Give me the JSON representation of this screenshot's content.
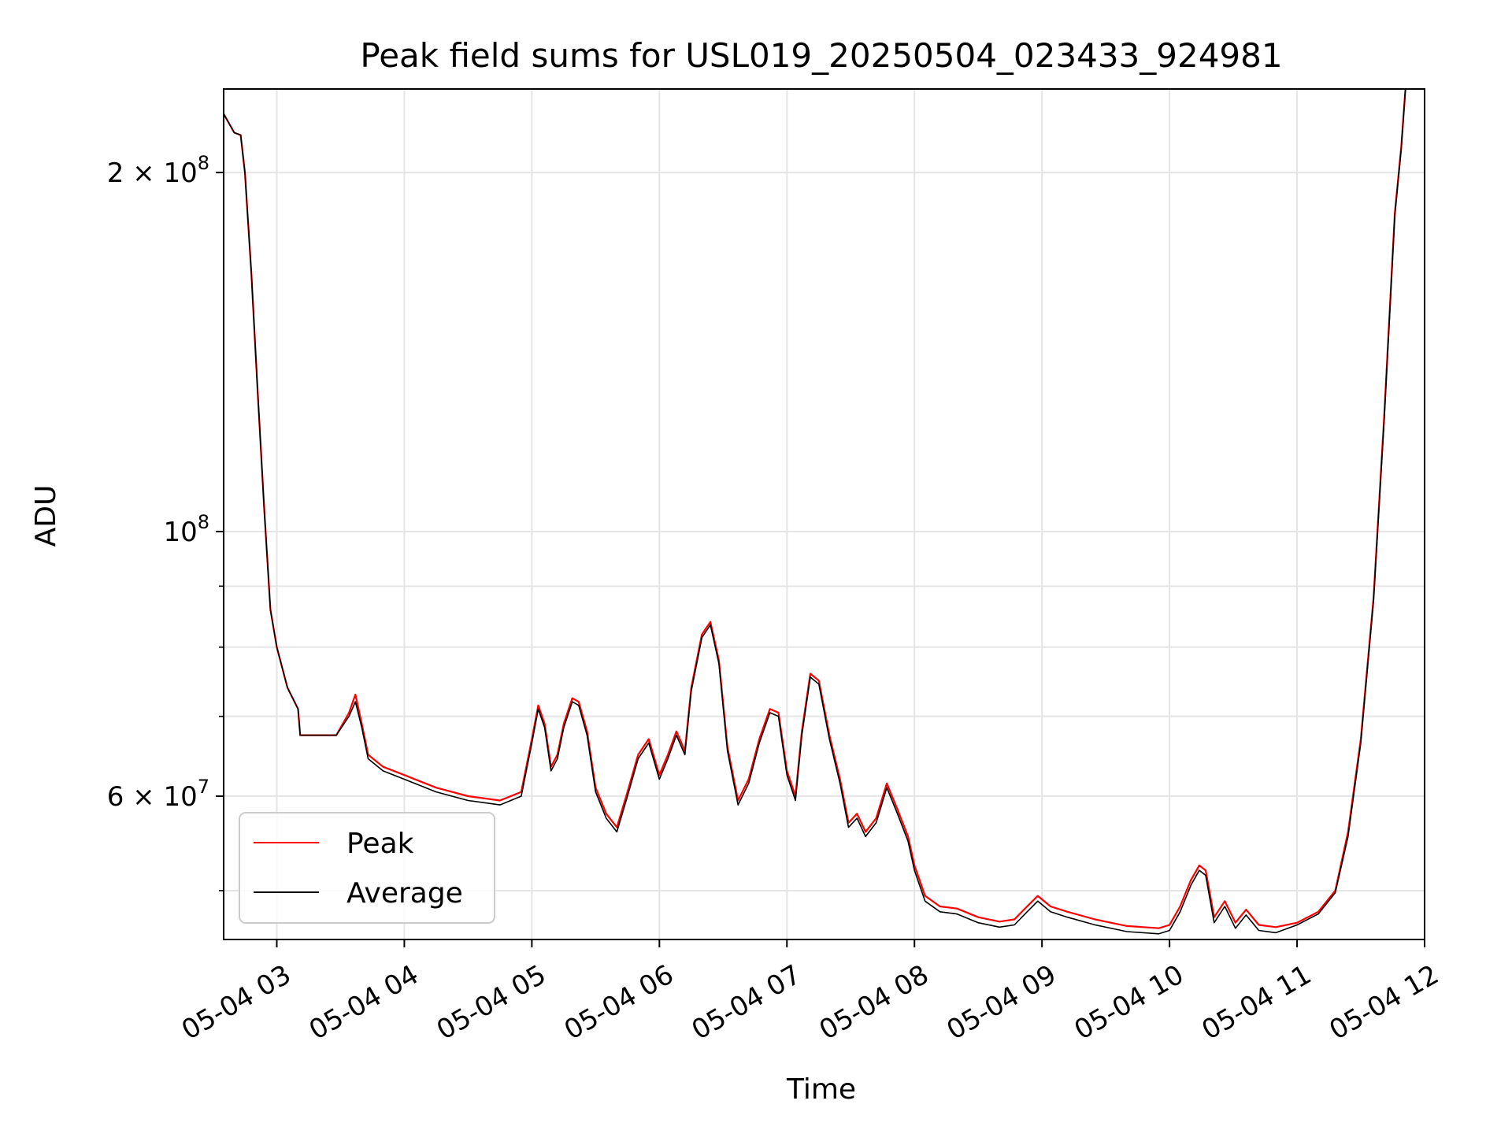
{
  "chart_data": {
    "type": "line",
    "title": "Peak field sums for USL019_20250504_023433_924981",
    "xlabel": "Time",
    "ylabel": "ADU",
    "yscale": "log",
    "xlim": [
      "2025-05-04 02:35",
      "2025-05-04 12:00"
    ],
    "ylim": [
      45500000,
      235000000
    ],
    "grid": true,
    "legend_position": "lower-left",
    "x_tick_labels": [
      "05-04 03",
      "05-04 04",
      "05-04 05",
      "05-04 06",
      "05-04 07",
      "05-04 08",
      "05-04 09",
      "05-04 10",
      "05-04 11",
      "05-04 12"
    ],
    "y_tick_labels": [
      {
        "value": 200000000,
        "base": "2 × 10",
        "exp": "8"
      },
      {
        "value": 100000000,
        "base": "10",
        "exp": "8"
      },
      {
        "value": 60000000,
        "base": "6 × 10",
        "exp": "7"
      }
    ],
    "series": [
      {
        "name": "Peak",
        "color": "#ff0000",
        "points": [
          [
            "2025-05-04 02:35",
            224000000
          ],
          [
            "2025-05-04 02:40",
            216000000
          ],
          [
            "2025-05-04 02:43",
            215000000
          ],
          [
            "2025-05-04 02:45",
            200000000
          ],
          [
            "2025-05-04 02:48",
            165000000
          ],
          [
            "2025-05-04 02:51",
            131000000
          ],
          [
            "2025-05-04 02:54",
            105000000
          ],
          [
            "2025-05-04 02:57",
            86000000
          ],
          [
            "2025-05-04 03:00",
            80000000
          ],
          [
            "2025-05-04 03:05",
            74000000
          ],
          [
            "2025-05-04 03:10",
            71000000
          ],
          [
            "2025-05-04 03:11",
            67500000
          ],
          [
            "2025-05-04 03:20",
            67500000
          ],
          [
            "2025-05-04 03:28",
            67500000
          ],
          [
            "2025-05-04 03:34",
            70500000
          ],
          [
            "2025-05-04 03:37",
            73000000
          ],
          [
            "2025-05-04 03:40",
            69000000
          ],
          [
            "2025-05-04 03:43",
            65000000
          ],
          [
            "2025-05-04 03:50",
            63500000
          ],
          [
            "2025-05-04 04:00",
            62500000
          ],
          [
            "2025-05-04 04:15",
            61000000
          ],
          [
            "2025-05-04 04:30",
            60000000
          ],
          [
            "2025-05-04 04:45",
            59500000
          ],
          [
            "2025-05-04 04:55",
            60500000
          ],
          [
            "2025-05-04 05:00",
            67000000
          ],
          [
            "2025-05-04 05:03",
            71500000
          ],
          [
            "2025-05-04 05:06",
            69000000
          ],
          [
            "2025-05-04 05:09",
            63500000
          ],
          [
            "2025-05-04 05:12",
            65000000
          ],
          [
            "2025-05-04 05:15",
            69000000
          ],
          [
            "2025-05-04 05:19",
            72500000
          ],
          [
            "2025-05-04 05:22",
            72000000
          ],
          [
            "2025-05-04 05:26",
            68000000
          ],
          [
            "2025-05-04 05:30",
            61000000
          ],
          [
            "2025-05-04 05:35",
            58000000
          ],
          [
            "2025-05-04 05:40",
            56500000
          ],
          [
            "2025-05-04 05:45",
            60500000
          ],
          [
            "2025-05-04 05:50",
            65000000
          ],
          [
            "2025-05-04 05:55",
            67000000
          ],
          [
            "2025-05-04 06:00",
            62500000
          ],
          [
            "2025-05-04 06:04",
            65000000
          ],
          [
            "2025-05-04 06:08",
            68000000
          ],
          [
            "2025-05-04 06:12",
            65500000
          ],
          [
            "2025-05-04 06:15",
            74000000
          ],
          [
            "2025-05-04 06:20",
            82000000
          ],
          [
            "2025-05-04 06:24",
            84000000
          ],
          [
            "2025-05-04 06:28",
            78000000
          ],
          [
            "2025-05-04 06:32",
            66000000
          ],
          [
            "2025-05-04 06:37",
            59500000
          ],
          [
            "2025-05-04 06:42",
            62000000
          ],
          [
            "2025-05-04 06:47",
            67000000
          ],
          [
            "2025-05-04 06:52",
            71000000
          ],
          [
            "2025-05-04 06:56",
            70500000
          ],
          [
            "2025-05-04 07:00",
            63000000
          ],
          [
            "2025-05-04 07:04",
            60000000
          ],
          [
            "2025-05-04 07:07",
            68000000
          ],
          [
            "2025-05-04 07:11",
            76000000
          ],
          [
            "2025-05-04 07:15",
            75000000
          ],
          [
            "2025-05-04 07:20",
            67500000
          ],
          [
            "2025-05-04 07:25",
            62000000
          ],
          [
            "2025-05-04 07:29",
            57000000
          ],
          [
            "2025-05-04 07:33",
            58000000
          ],
          [
            "2025-05-04 07:37",
            56000000
          ],
          [
            "2025-05-04 07:42",
            57500000
          ],
          [
            "2025-05-04 07:47",
            61500000
          ],
          [
            "2025-05-04 07:52",
            58500000
          ],
          [
            "2025-05-04 07:57",
            55500000
          ],
          [
            "2025-05-04 08:00",
            52500000
          ],
          [
            "2025-05-04 08:05",
            49500000
          ],
          [
            "2025-05-04 08:12",
            48500000
          ],
          [
            "2025-05-04 08:20",
            48300000
          ],
          [
            "2025-05-04 08:30",
            47500000
          ],
          [
            "2025-05-04 08:40",
            47100000
          ],
          [
            "2025-05-04 08:47",
            47300000
          ],
          [
            "2025-05-04 08:53",
            48500000
          ],
          [
            "2025-05-04 08:58",
            49500000
          ],
          [
            "2025-05-04 09:04",
            48500000
          ],
          [
            "2025-05-04 09:12",
            48000000
          ],
          [
            "2025-05-04 09:25",
            47300000
          ],
          [
            "2025-05-04 09:40",
            46700000
          ],
          [
            "2025-05-04 09:55",
            46500000
          ],
          [
            "2025-05-04 10:00",
            46800000
          ],
          [
            "2025-05-04 10:05",
            48500000
          ],
          [
            "2025-05-04 10:10",
            51000000
          ],
          [
            "2025-05-04 10:14",
            52500000
          ],
          [
            "2025-05-04 10:17",
            52000000
          ],
          [
            "2025-05-04 10:21",
            47500000
          ],
          [
            "2025-05-04 10:26",
            49000000
          ],
          [
            "2025-05-04 10:31",
            47000000
          ],
          [
            "2025-05-04 10:36",
            48200000
          ],
          [
            "2025-05-04 10:42",
            46800000
          ],
          [
            "2025-05-04 10:50",
            46600000
          ],
          [
            "2025-05-04 11:00",
            47000000
          ],
          [
            "2025-05-04 11:10",
            48000000
          ],
          [
            "2025-05-04 11:18",
            50000000
          ],
          [
            "2025-05-04 11:24",
            56000000
          ],
          [
            "2025-05-04 11:30",
            67000000
          ],
          [
            "2025-05-04 11:36",
            88000000
          ],
          [
            "2025-05-04 11:41",
            125000000
          ],
          [
            "2025-05-04 11:46",
            185000000
          ],
          [
            "2025-05-04 11:49",
            210000000
          ],
          [
            "2025-05-04 11:51",
            235000000
          ]
        ]
      },
      {
        "name": "Average",
        "color": "#000000",
        "points": [
          [
            "2025-05-04 02:35",
            224000000
          ],
          [
            "2025-05-04 02:40",
            216000000
          ],
          [
            "2025-05-04 02:43",
            215000000
          ],
          [
            "2025-05-04 02:45",
            200000000
          ],
          [
            "2025-05-04 02:48",
            165000000
          ],
          [
            "2025-05-04 02:51",
            131000000
          ],
          [
            "2025-05-04 02:54",
            105000000
          ],
          [
            "2025-05-04 02:57",
            86000000
          ],
          [
            "2025-05-04 03:00",
            80000000
          ],
          [
            "2025-05-04 03:05",
            74000000
          ],
          [
            "2025-05-04 03:10",
            71000000
          ],
          [
            "2025-05-04 03:11",
            67500000
          ],
          [
            "2025-05-04 03:20",
            67500000
          ],
          [
            "2025-05-04 03:28",
            67500000
          ],
          [
            "2025-05-04 03:34",
            70000000
          ],
          [
            "2025-05-04 03:37",
            72000000
          ],
          [
            "2025-05-04 03:40",
            68500000
          ],
          [
            "2025-05-04 03:43",
            64500000
          ],
          [
            "2025-05-04 03:50",
            63000000
          ],
          [
            "2025-05-04 04:00",
            62000000
          ],
          [
            "2025-05-04 04:15",
            60500000
          ],
          [
            "2025-05-04 04:30",
            59500000
          ],
          [
            "2025-05-04 04:45",
            59000000
          ],
          [
            "2025-05-04 04:55",
            60000000
          ],
          [
            "2025-05-04 05:00",
            66500000
          ],
          [
            "2025-05-04 05:03",
            71000000
          ],
          [
            "2025-05-04 05:06",
            68500000
          ],
          [
            "2025-05-04 05:09",
            63000000
          ],
          [
            "2025-05-04 05:12",
            64500000
          ],
          [
            "2025-05-04 05:15",
            68500000
          ],
          [
            "2025-05-04 05:19",
            72000000
          ],
          [
            "2025-05-04 05:22",
            71500000
          ],
          [
            "2025-05-04 05:26",
            67500000
          ],
          [
            "2025-05-04 05:30",
            60500000
          ],
          [
            "2025-05-04 05:35",
            57500000
          ],
          [
            "2025-05-04 05:40",
            56000000
          ],
          [
            "2025-05-04 05:45",
            60000000
          ],
          [
            "2025-05-04 05:50",
            64500000
          ],
          [
            "2025-05-04 05:55",
            66500000
          ],
          [
            "2025-05-04 06:00",
            62000000
          ],
          [
            "2025-05-04 06:04",
            64500000
          ],
          [
            "2025-05-04 06:08",
            67500000
          ],
          [
            "2025-05-04 06:12",
            65000000
          ],
          [
            "2025-05-04 06:15",
            73500000
          ],
          [
            "2025-05-04 06:20",
            81500000
          ],
          [
            "2025-05-04 06:24",
            83500000
          ],
          [
            "2025-05-04 06:28",
            77500000
          ],
          [
            "2025-05-04 06:32",
            65500000
          ],
          [
            "2025-05-04 06:37",
            59000000
          ],
          [
            "2025-05-04 06:42",
            61500000
          ],
          [
            "2025-05-04 06:47",
            66500000
          ],
          [
            "2025-05-04 06:52",
            70500000
          ],
          [
            "2025-05-04 06:56",
            70000000
          ],
          [
            "2025-05-04 07:00",
            62500000
          ],
          [
            "2025-05-04 07:04",
            59500000
          ],
          [
            "2025-05-04 07:07",
            67500000
          ],
          [
            "2025-05-04 07:11",
            75500000
          ],
          [
            "2025-05-04 07:15",
            74500000
          ],
          [
            "2025-05-04 07:20",
            67000000
          ],
          [
            "2025-05-04 07:25",
            61500000
          ],
          [
            "2025-05-04 07:29",
            56500000
          ],
          [
            "2025-05-04 07:33",
            57500000
          ],
          [
            "2025-05-04 07:37",
            55500000
          ],
          [
            "2025-05-04 07:42",
            57000000
          ],
          [
            "2025-05-04 07:47",
            61000000
          ],
          [
            "2025-05-04 07:52",
            58000000
          ],
          [
            "2025-05-04 07:57",
            55000000
          ],
          [
            "2025-05-04 08:00",
            52000000
          ],
          [
            "2025-05-04 08:05",
            49000000
          ],
          [
            "2025-05-04 08:12",
            48000000
          ],
          [
            "2025-05-04 08:20",
            47800000
          ],
          [
            "2025-05-04 08:30",
            47000000
          ],
          [
            "2025-05-04 08:40",
            46600000
          ],
          [
            "2025-05-04 08:47",
            46800000
          ],
          [
            "2025-05-04 08:53",
            48000000
          ],
          [
            "2025-05-04 08:58",
            49000000
          ],
          [
            "2025-05-04 09:04",
            48000000
          ],
          [
            "2025-05-04 09:12",
            47500000
          ],
          [
            "2025-05-04 09:25",
            46800000
          ],
          [
            "2025-05-04 09:40",
            46200000
          ],
          [
            "2025-05-04 09:55",
            46000000
          ],
          [
            "2025-05-04 10:00",
            46300000
          ],
          [
            "2025-05-04 10:05",
            48000000
          ],
          [
            "2025-05-04 10:10",
            50500000
          ],
          [
            "2025-05-04 10:14",
            52000000
          ],
          [
            "2025-05-04 10:17",
            51500000
          ],
          [
            "2025-05-04 10:21",
            47000000
          ],
          [
            "2025-05-04 10:26",
            48500000
          ],
          [
            "2025-05-04 10:31",
            46500000
          ],
          [
            "2025-05-04 10:36",
            47700000
          ],
          [
            "2025-05-04 10:42",
            46300000
          ],
          [
            "2025-05-04 10:50",
            46100000
          ],
          [
            "2025-05-04 11:00",
            46800000
          ],
          [
            "2025-05-04 11:10",
            47800000
          ],
          [
            "2025-05-04 11:18",
            49800000
          ],
          [
            "2025-05-04 11:24",
            55500000
          ],
          [
            "2025-05-04 11:30",
            66500000
          ],
          [
            "2025-05-04 11:36",
            87500000
          ],
          [
            "2025-05-04 11:41",
            124000000
          ],
          [
            "2025-05-04 11:46",
            184000000
          ],
          [
            "2025-05-04 11:49",
            209000000
          ],
          [
            "2025-05-04 11:51",
            235000000
          ]
        ]
      }
    ]
  }
}
